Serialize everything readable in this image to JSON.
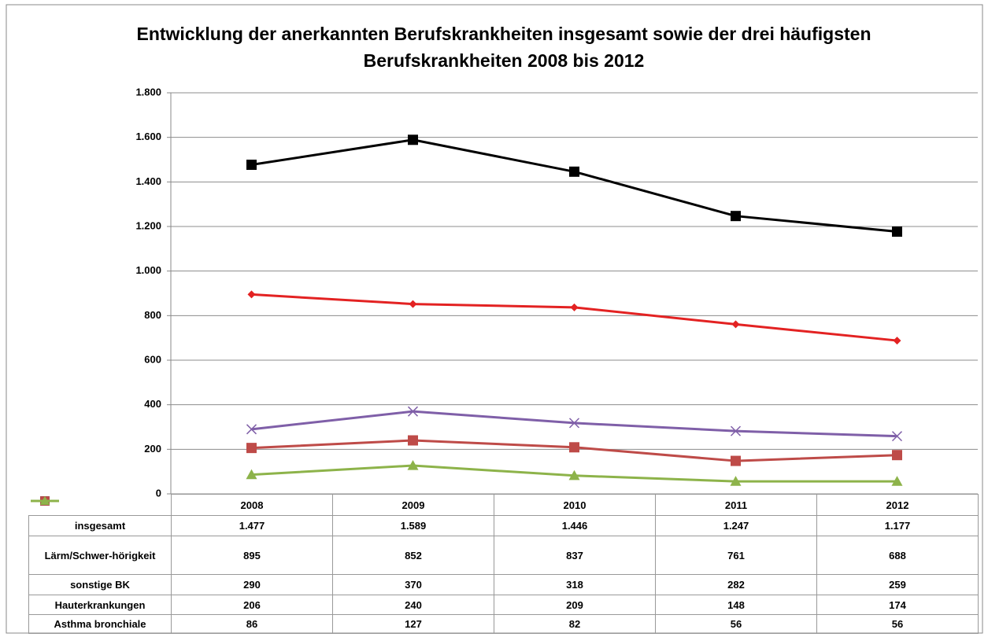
{
  "chart_data": {
    "type": "line",
    "title": "Entwicklung der anerkannten Berufskrankheiten insgesamt sowie der drei häufigsten Berufskrankheiten 2008 bis 2012",
    "categories": [
      "2008",
      "2009",
      "2010",
      "2011",
      "2012"
    ],
    "series": [
      {
        "name": "insgesamt",
        "color": "#000000",
        "marker": "square",
        "values": [
          1477,
          1589,
          1446,
          1247,
          1177
        ],
        "value_labels": [
          "1.477",
          "1.589",
          "1.446",
          "1.247",
          "1.177"
        ]
      },
      {
        "name": "Lärm/Schwer-hörigkeit",
        "color": "#e32222",
        "marker": "diamond",
        "values": [
          895,
          852,
          837,
          761,
          688
        ]
      },
      {
        "name": "sonstige BK",
        "color": "#7f5fa8",
        "marker": "x",
        "values": [
          290,
          370,
          318,
          282,
          259
        ]
      },
      {
        "name": "Hauterkrankungen",
        "color": "#be4b48",
        "marker": "square",
        "values": [
          206,
          240,
          209,
          148,
          174
        ]
      },
      {
        "name": "Asthma bronchiale",
        "color": "#8db34a",
        "marker": "triangle",
        "values": [
          86,
          127,
          82,
          56,
          56
        ]
      }
    ],
    "ylim": [
      0,
      1800
    ],
    "yticks": [
      0,
      200,
      400,
      600,
      800,
      {
        "value": 1000,
        "label": "1.000"
      },
      {
        "value": 1200,
        "label": "1.200"
      },
      {
        "value": 1400,
        "label": "1.400"
      },
      {
        "value": 1600,
        "label": "1.600"
      },
      {
        "value": 1800,
        "label": "1.800"
      }
    ],
    "grid": true
  }
}
